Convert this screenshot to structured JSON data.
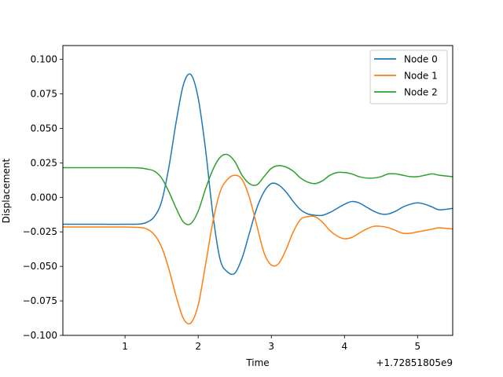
{
  "chart_data": {
    "type": "line",
    "title": "",
    "xlabel": "Time",
    "ylabel": "Displacement",
    "x_offset_text": "+1.72851805e9",
    "xlim": [
      0.15,
      5.48
    ],
    "ylim": [
      -0.1,
      0.11
    ],
    "xticks": [
      {
        "value": 1,
        "label": "1"
      },
      {
        "value": 2,
        "label": "2"
      },
      {
        "value": 3,
        "label": "3"
      },
      {
        "value": 4,
        "label": "4"
      },
      {
        "value": 5,
        "label": "5"
      }
    ],
    "yticks": [
      {
        "value": 0.1,
        "label": "0.100"
      },
      {
        "value": 0.075,
        "label": "0.075"
      },
      {
        "value": 0.05,
        "label": "0.050"
      },
      {
        "value": 0.025,
        "label": "0.025"
      },
      {
        "value": 0.0,
        "label": "0.000"
      },
      {
        "value": -0.025,
        "label": "−0.025"
      },
      {
        "value": -0.05,
        "label": "−0.050"
      },
      {
        "value": -0.075,
        "label": "−0.075"
      },
      {
        "value": -0.1,
        "label": "−0.100"
      }
    ],
    "grid": false,
    "legend": "top-right",
    "x": [
      0.15,
      0.4,
      0.7,
      1.0,
      1.2,
      1.3,
      1.4,
      1.5,
      1.6,
      1.7,
      1.8,
      1.9,
      2.0,
      2.1,
      2.2,
      2.3,
      2.4,
      2.5,
      2.6,
      2.7,
      2.8,
      2.9,
      3.0,
      3.1,
      3.2,
      3.3,
      3.4,
      3.5,
      3.6,
      3.7,
      3.8,
      3.9,
      4.0,
      4.1,
      4.2,
      4.3,
      4.4,
      4.5,
      4.6,
      4.7,
      4.8,
      4.9,
      5.0,
      5.1,
      5.2,
      5.3,
      5.48
    ],
    "series": [
      {
        "name": "Node 0",
        "color": "#1f77b4",
        "values": [
          -0.0195,
          -0.0195,
          -0.0195,
          -0.0195,
          -0.0193,
          -0.018,
          -0.014,
          -0.003,
          0.022,
          0.055,
          0.082,
          0.089,
          0.072,
          0.035,
          -0.012,
          -0.045,
          -0.054,
          -0.055,
          -0.044,
          -0.026,
          -0.008,
          0.004,
          0.01,
          0.009,
          0.004,
          -0.003,
          -0.009,
          -0.012,
          -0.013,
          -0.013,
          -0.011,
          -0.008,
          -0.005,
          -0.003,
          -0.004,
          -0.007,
          -0.01,
          -0.012,
          -0.012,
          -0.01,
          -0.007,
          -0.005,
          -0.004,
          -0.005,
          -0.007,
          -0.009,
          -0.008
        ]
      },
      {
        "name": "Node 1",
        "color": "#ff7f0e",
        "values": [
          -0.0215,
          -0.0215,
          -0.0215,
          -0.0215,
          -0.0218,
          -0.023,
          -0.027,
          -0.036,
          -0.052,
          -0.072,
          -0.088,
          -0.091,
          -0.078,
          -0.049,
          -0.018,
          0.004,
          0.013,
          0.016,
          0.013,
          0.0,
          -0.02,
          -0.04,
          -0.049,
          -0.048,
          -0.038,
          -0.025,
          -0.016,
          -0.014,
          -0.014,
          -0.018,
          -0.024,
          -0.028,
          -0.03,
          -0.029,
          -0.026,
          -0.023,
          -0.021,
          -0.021,
          -0.022,
          -0.024,
          -0.026,
          -0.026,
          -0.025,
          -0.024,
          -0.023,
          -0.022,
          -0.023
        ]
      },
      {
        "name": "Node 2",
        "color": "#2ca02c",
        "values": [
          0.0215,
          0.0215,
          0.0215,
          0.0215,
          0.0213,
          0.0205,
          0.019,
          0.014,
          0.004,
          -0.008,
          -0.018,
          -0.019,
          -0.01,
          0.006,
          0.02,
          0.029,
          0.031,
          0.026,
          0.016,
          0.01,
          0.009,
          0.015,
          0.021,
          0.023,
          0.022,
          0.019,
          0.014,
          0.011,
          0.01,
          0.012,
          0.016,
          0.018,
          0.018,
          0.017,
          0.015,
          0.014,
          0.014,
          0.015,
          0.017,
          0.017,
          0.016,
          0.015,
          0.015,
          0.016,
          0.017,
          0.016,
          0.015
        ]
      }
    ]
  }
}
